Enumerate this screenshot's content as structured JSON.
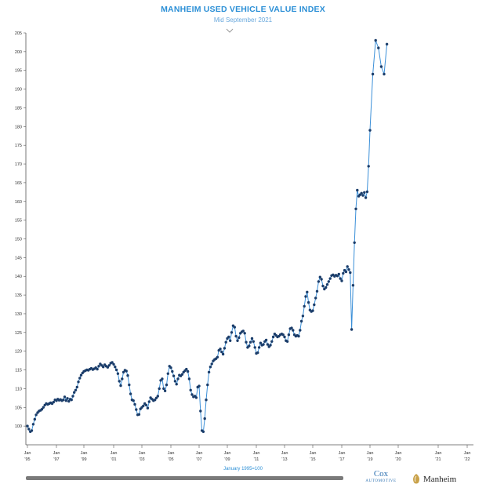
{
  "chart_data": {
    "type": "line",
    "title": "MANHEIM USED VEHICLE VALUE INDEX",
    "subtitle": "Mid September 2021",
    "xlabel": "January 1995=100",
    "ylim": [
      95,
      205
    ],
    "yticks": [
      100,
      105,
      110,
      115,
      120,
      125,
      130,
      135,
      140,
      145,
      150,
      155,
      160,
      165,
      170,
      175,
      180,
      185,
      190,
      195,
      200,
      205
    ],
    "xticks": [
      {
        "year": 1995,
        "line1": "Jan",
        "line2": "'95"
      },
      {
        "year": 1997,
        "line1": "Jan",
        "line2": "'97"
      },
      {
        "year": 1999,
        "line1": "Jan",
        "line2": "'99"
      },
      {
        "year": 2001,
        "line1": "Jan",
        "line2": "'01"
      },
      {
        "year": 2003,
        "line1": "Jan",
        "line2": "'03"
      },
      {
        "year": 2005,
        "line1": "Jan",
        "line2": "'05"
      },
      {
        "year": 2007,
        "line1": "Jan",
        "line2": "'07"
      },
      {
        "year": 2009,
        "line1": "Jan",
        "line2": "'09"
      },
      {
        "year": 2011,
        "line1": "Jan",
        "line2": "'11"
      },
      {
        "year": 2013,
        "line1": "Jan",
        "line2": "'13"
      },
      {
        "year": 2015,
        "line1": "Jan",
        "line2": "'15"
      },
      {
        "year": 2017,
        "line1": "Jan",
        "line2": "'17"
      },
      {
        "year": 2019,
        "line1": "Jan",
        "line2": "'19"
      },
      {
        "year": 2020,
        "line1": "Jan",
        "line2": "'20"
      },
      {
        "year": 2021,
        "line1": "Jan",
        "line2": "'21"
      },
      {
        "year": 2022,
        "line1": "Jan",
        "line2": "'22"
      }
    ],
    "x_domain": [
      1995,
      2022
    ],
    "series": [
      {
        "color": "#3a8fd8",
        "marker_color": "#1b3d6a",
        "points": [
          [
            1995.0,
            100.0
          ],
          [
            1995.1,
            99.2
          ],
          [
            1995.2,
            98.5
          ],
          [
            1995.3,
            98.8
          ],
          [
            1995.4,
            100.5
          ],
          [
            1995.5,
            101.8
          ],
          [
            1995.6,
            103.0
          ],
          [
            1995.7,
            103.6
          ],
          [
            1995.8,
            104.0
          ],
          [
            1995.9,
            104.2
          ],
          [
            1996.0,
            104.5
          ],
          [
            1996.1,
            105.0
          ],
          [
            1996.2,
            105.6
          ],
          [
            1996.3,
            106.0
          ],
          [
            1996.4,
            105.8
          ],
          [
            1996.5,
            106.0
          ],
          [
            1996.6,
            106.2
          ],
          [
            1996.7,
            106.0
          ],
          [
            1996.8,
            106.4
          ],
          [
            1996.9,
            107.0
          ],
          [
            1997.0,
            106.8
          ],
          [
            1997.1,
            107.2
          ],
          [
            1997.2,
            106.9
          ],
          [
            1997.3,
            107.1
          ],
          [
            1997.4,
            106.8
          ],
          [
            1997.5,
            107.0
          ],
          [
            1997.6,
            107.8
          ],
          [
            1997.7,
            106.8
          ],
          [
            1997.8,
            107.4
          ],
          [
            1997.9,
            106.6
          ],
          [
            1998.0,
            107.2
          ],
          [
            1998.1,
            107.0
          ],
          [
            1998.2,
            108.0
          ],
          [
            1998.3,
            109.0
          ],
          [
            1998.4,
            109.6
          ],
          [
            1998.5,
            110.4
          ],
          [
            1998.6,
            111.8
          ],
          [
            1998.7,
            112.8
          ],
          [
            1998.8,
            113.6
          ],
          [
            1998.9,
            114.2
          ],
          [
            1999.0,
            114.6
          ],
          [
            1999.1,
            114.8
          ],
          [
            1999.2,
            115.0
          ],
          [
            1999.3,
            114.9
          ],
          [
            1999.4,
            115.2
          ],
          [
            1999.5,
            115.4
          ],
          [
            1999.6,
            115.1
          ],
          [
            1999.7,
            115.3
          ],
          [
            1999.8,
            115.6
          ],
          [
            1999.9,
            115.2
          ],
          [
            2000.0,
            116.0
          ],
          [
            2000.1,
            116.6
          ],
          [
            2000.2,
            116.2
          ],
          [
            2000.3,
            115.8
          ],
          [
            2000.4,
            116.4
          ],
          [
            2000.5,
            116.0
          ],
          [
            2000.6,
            115.7
          ],
          [
            2000.7,
            116.2
          ],
          [
            2000.8,
            116.8
          ],
          [
            2000.9,
            117.0
          ],
          [
            2001.0,
            116.5
          ],
          [
            2001.1,
            115.8
          ],
          [
            2001.2,
            115.0
          ],
          [
            2001.3,
            114.0
          ],
          [
            2001.4,
            112.0
          ],
          [
            2001.5,
            110.8
          ],
          [
            2001.6,
            112.6
          ],
          [
            2001.7,
            114.4
          ],
          [
            2001.8,
            114.9
          ],
          [
            2001.9,
            114.7
          ],
          [
            2002.0,
            113.5
          ],
          [
            2002.1,
            111.0
          ],
          [
            2002.2,
            108.6
          ],
          [
            2002.3,
            107.0
          ],
          [
            2002.4,
            106.8
          ],
          [
            2002.5,
            105.8
          ],
          [
            2002.6,
            104.4
          ],
          [
            2002.7,
            103.0
          ],
          [
            2002.8,
            103.1
          ],
          [
            2002.9,
            104.6
          ],
          [
            2003.0,
            105.0
          ],
          [
            2003.1,
            105.4
          ],
          [
            2003.2,
            106.0
          ],
          [
            2003.3,
            105.6
          ],
          [
            2003.4,
            104.8
          ],
          [
            2003.5,
            106.5
          ],
          [
            2003.6,
            107.6
          ],
          [
            2003.7,
            107.2
          ],
          [
            2003.8,
            106.8
          ],
          [
            2003.9,
            107.0
          ],
          [
            2004.0,
            107.5
          ],
          [
            2004.1,
            108.0
          ],
          [
            2004.2,
            110.0
          ],
          [
            2004.3,
            112.2
          ],
          [
            2004.4,
            112.6
          ],
          [
            2004.5,
            110.0
          ],
          [
            2004.6,
            109.4
          ],
          [
            2004.7,
            111.0
          ],
          [
            2004.8,
            114.0
          ],
          [
            2004.9,
            116.0
          ],
          [
            2005.0,
            115.6
          ],
          [
            2005.1,
            114.6
          ],
          [
            2005.2,
            113.4
          ],
          [
            2005.3,
            112.0
          ],
          [
            2005.4,
            111.2
          ],
          [
            2005.5,
            112.6
          ],
          [
            2005.6,
            113.6
          ],
          [
            2005.7,
            113.4
          ],
          [
            2005.8,
            113.8
          ],
          [
            2005.9,
            114.4
          ],
          [
            2006.0,
            114.8
          ],
          [
            2006.1,
            115.2
          ],
          [
            2006.2,
            114.6
          ],
          [
            2006.3,
            112.6
          ],
          [
            2006.4,
            109.6
          ],
          [
            2006.5,
            108.4
          ],
          [
            2006.6,
            107.8
          ],
          [
            2006.7,
            108.0
          ],
          [
            2006.8,
            107.6
          ],
          [
            2006.9,
            110.4
          ],
          [
            2007.0,
            110.7
          ],
          [
            2007.1,
            104.0
          ],
          [
            2007.2,
            98.8
          ],
          [
            2007.3,
            98.5
          ],
          [
            2007.4,
            102.0
          ],
          [
            2007.5,
            107.0
          ],
          [
            2007.6,
            111.0
          ],
          [
            2007.7,
            114.4
          ],
          [
            2007.8,
            115.8
          ],
          [
            2007.9,
            116.6
          ],
          [
            2008.0,
            117.4
          ],
          [
            2008.1,
            117.8
          ],
          [
            2008.2,
            118.0
          ],
          [
            2008.3,
            118.4
          ],
          [
            2008.4,
            120.2
          ],
          [
            2008.5,
            120.6
          ],
          [
            2008.6,
            119.8
          ],
          [
            2008.7,
            119.2
          ],
          [
            2008.8,
            120.8
          ],
          [
            2008.9,
            122.4
          ],
          [
            2009.0,
            123.4
          ],
          [
            2009.1,
            123.8
          ],
          [
            2009.2,
            122.8
          ],
          [
            2009.3,
            125.0
          ],
          [
            2009.4,
            126.8
          ],
          [
            2009.5,
            126.4
          ],
          [
            2009.6,
            124.0
          ],
          [
            2009.7,
            122.8
          ],
          [
            2009.8,
            123.6
          ],
          [
            2009.9,
            124.8
          ],
          [
            2010.0,
            125.2
          ],
          [
            2010.1,
            125.4
          ],
          [
            2010.2,
            124.8
          ],
          [
            2010.3,
            122.4
          ],
          [
            2010.4,
            121.0
          ],
          [
            2010.5,
            121.4
          ],
          [
            2010.6,
            122.4
          ],
          [
            2010.7,
            123.4
          ],
          [
            2010.8,
            122.6
          ],
          [
            2010.9,
            121.0
          ],
          [
            2011.0,
            119.4
          ],
          [
            2011.1,
            119.6
          ],
          [
            2011.2,
            121.0
          ],
          [
            2011.3,
            122.2
          ],
          [
            2011.4,
            121.6
          ],
          [
            2011.5,
            121.8
          ],
          [
            2011.6,
            122.6
          ],
          [
            2011.7,
            123.0
          ],
          [
            2011.8,
            121.8
          ],
          [
            2011.9,
            121.2
          ],
          [
            2012.0,
            121.6
          ],
          [
            2012.1,
            122.6
          ],
          [
            2012.2,
            123.8
          ],
          [
            2012.3,
            124.6
          ],
          [
            2012.4,
            124.2
          ],
          [
            2012.5,
            123.8
          ],
          [
            2012.6,
            124.0
          ],
          [
            2012.7,
            124.4
          ],
          [
            2012.8,
            124.6
          ],
          [
            2012.9,
            124.4
          ],
          [
            2013.0,
            123.8
          ],
          [
            2013.1,
            122.8
          ],
          [
            2013.2,
            122.6
          ],
          [
            2013.3,
            124.4
          ],
          [
            2013.4,
            126.0
          ],
          [
            2013.5,
            126.2
          ],
          [
            2013.6,
            125.6
          ],
          [
            2013.7,
            124.4
          ],
          [
            2013.8,
            124.0
          ],
          [
            2013.9,
            124.2
          ],
          [
            2014.0,
            124.0
          ],
          [
            2014.1,
            125.6
          ],
          [
            2014.2,
            128.0
          ],
          [
            2014.3,
            129.4
          ],
          [
            2014.4,
            132.0
          ],
          [
            2014.5,
            134.6
          ],
          [
            2014.6,
            135.8
          ],
          [
            2014.7,
            133.0
          ],
          [
            2014.8,
            131.0
          ],
          [
            2014.9,
            130.6
          ],
          [
            2015.0,
            130.8
          ],
          [
            2015.1,
            132.4
          ],
          [
            2015.2,
            134.2
          ],
          [
            2015.3,
            136.0
          ],
          [
            2015.4,
            138.6
          ],
          [
            2015.5,
            139.8
          ],
          [
            2015.6,
            139.2
          ],
          [
            2015.7,
            137.4
          ],
          [
            2015.8,
            136.6
          ],
          [
            2015.9,
            137.0
          ],
          [
            2016.0,
            137.8
          ],
          [
            2016.1,
            138.6
          ],
          [
            2016.2,
            139.4
          ],
          [
            2016.3,
            140.2
          ],
          [
            2016.4,
            140.4
          ],
          [
            2016.5,
            140.0
          ],
          [
            2016.6,
            140.3
          ],
          [
            2016.7,
            140.1
          ],
          [
            2016.8,
            140.6
          ],
          [
            2016.9,
            139.4
          ],
          [
            2017.0,
            138.8
          ],
          [
            2017.1,
            140.8
          ],
          [
            2017.2,
            141.6
          ],
          [
            2017.3,
            141.2
          ],
          [
            2017.4,
            142.6
          ],
          [
            2017.5,
            141.8
          ],
          [
            2017.6,
            141.0
          ],
          [
            2017.7,
            125.8
          ],
          [
            2017.8,
            137.6
          ],
          [
            2017.9,
            149.0
          ],
          [
            2018.0,
            158.0
          ],
          [
            2018.1,
            163.0
          ],
          [
            2018.2,
            161.4
          ],
          [
            2018.3,
            161.8
          ],
          [
            2018.4,
            162.2
          ],
          [
            2018.5,
            161.6
          ],
          [
            2018.6,
            162.4
          ],
          [
            2018.7,
            161.0
          ],
          [
            2018.8,
            162.6
          ],
          [
            2018.9,
            169.4
          ],
          [
            2019.0,
            179.0
          ],
          [
            2019.1,
            194.0
          ],
          [
            2019.2,
            203.0
          ],
          [
            2019.3,
            201.0
          ],
          [
            2019.4,
            196.0
          ],
          [
            2019.5,
            194.0
          ],
          [
            2019.6,
            202.0
          ]
        ]
      }
    ]
  },
  "footer": {
    "cox_line1": "Cox",
    "cox_line2": "AUTOMOTIVE",
    "manheim_text": "Manheim"
  }
}
